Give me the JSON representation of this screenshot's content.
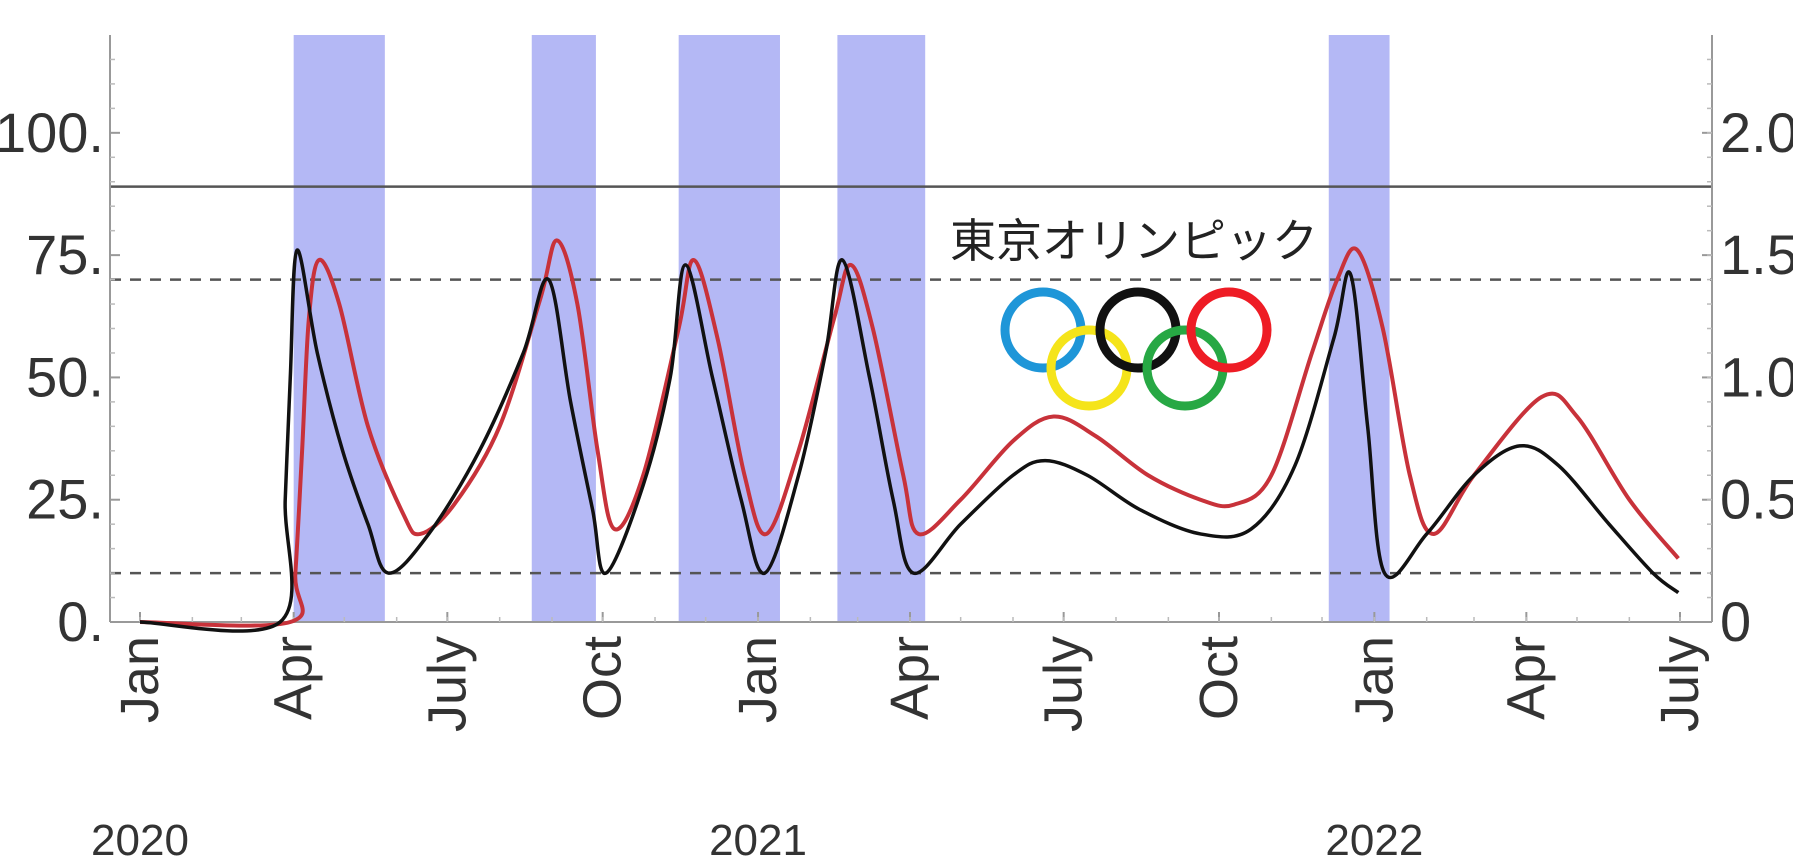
{
  "chart_data": {
    "type": "line",
    "title": "",
    "xlabel": "",
    "ylabel": "",
    "x_range": [
      "2020-01-01",
      "2022-07-01"
    ],
    "y_left": {
      "ylim": [
        0,
        120
      ],
      "ticks": [
        "0.",
        "25.",
        "50.",
        "75.",
        "100."
      ],
      "tick_values": [
        0,
        25,
        50,
        75,
        100
      ]
    },
    "y_right": {
      "ylim": [
        0,
        2.4
      ],
      "ticks": [
        "0",
        "0.5",
        "1.0",
        "1.5",
        "2.0"
      ],
      "tick_values": [
        0,
        0.5,
        1.0,
        1.5,
        2.0
      ]
    },
    "x_ticks": [
      {
        "label": "Jan",
        "date": "2020-01-01"
      },
      {
        "label": "Apr",
        "date": "2020-04-01"
      },
      {
        "label": "July",
        "date": "2020-07-01"
      },
      {
        "label": "Oct",
        "date": "2020-10-01"
      },
      {
        "label": "Jan",
        "date": "2021-01-01"
      },
      {
        "label": "Apr",
        "date": "2021-04-01"
      },
      {
        "label": "July",
        "date": "2021-07-01"
      },
      {
        "label": "Oct",
        "date": "2021-10-01"
      },
      {
        "label": "Jan",
        "date": "2022-01-01"
      },
      {
        "label": "Apr",
        "date": "2022-04-01"
      },
      {
        "label": "July",
        "date": "2022-07-01"
      }
    ],
    "years": [
      {
        "label": "2020",
        "date": "2020-01-01"
      },
      {
        "label": "2021",
        "date": "2021-01-01"
      },
      {
        "label": "2022",
        "date": "2022-01-01"
      }
    ],
    "reference_lines": [
      {
        "y": 89,
        "style": "solid",
        "color": "#555555"
      },
      {
        "y": 70,
        "style": "dashed",
        "color": "#555555"
      },
      {
        "y": 10,
        "style": "dashed",
        "color": "#555555"
      }
    ],
    "shaded_periods": [
      {
        "start": "2020-04-01",
        "end": "2020-05-25"
      },
      {
        "start": "2020-08-20",
        "end": "2020-09-27"
      },
      {
        "start": "2020-11-15",
        "end": "2021-01-14"
      },
      {
        "start": "2021-02-17",
        "end": "2021-04-10"
      },
      {
        "start": "2021-12-05",
        "end": "2022-01-10"
      }
    ],
    "shade_color": "#b4b8f5",
    "series": [
      {
        "color": "#111111",
        "points": [
          [
            "2020-01-01",
            0
          ],
          [
            "2020-03-24",
            0
          ],
          [
            "2020-03-27",
            25
          ],
          [
            "2020-03-30",
            50
          ],
          [
            "2020-04-03",
            76
          ],
          [
            "2020-04-15",
            55
          ],
          [
            "2020-04-30",
            35
          ],
          [
            "2020-05-15",
            20
          ],
          [
            "2020-05-27",
            10
          ],
          [
            "2020-06-20",
            18
          ],
          [
            "2020-07-20",
            35
          ],
          [
            "2020-08-15",
            55
          ],
          [
            "2020-08-30",
            70
          ],
          [
            "2020-09-12",
            45
          ],
          [
            "2020-09-25",
            23
          ],
          [
            "2020-10-03",
            10
          ],
          [
            "2020-10-25",
            28
          ],
          [
            "2020-11-10",
            50
          ],
          [
            "2020-11-19",
            73
          ],
          [
            "2020-12-05",
            50
          ],
          [
            "2020-12-22",
            25
          ],
          [
            "2021-01-05",
            10
          ],
          [
            "2021-01-25",
            30
          ],
          [
            "2021-02-10",
            55
          ],
          [
            "2021-02-20",
            74
          ],
          [
            "2021-03-08",
            50
          ],
          [
            "2021-03-22",
            25
          ],
          [
            "2021-04-03",
            10
          ],
          [
            "2021-05-01",
            20
          ],
          [
            "2021-06-01",
            30
          ],
          [
            "2021-06-20",
            33
          ],
          [
            "2021-07-15",
            30
          ],
          [
            "2021-08-15",
            23
          ],
          [
            "2021-09-20",
            18
          ],
          [
            "2021-10-20",
            19
          ],
          [
            "2021-11-15",
            32
          ],
          [
            "2021-12-08",
            58
          ],
          [
            "2021-12-18",
            71
          ],
          [
            "2021-12-28",
            40
          ],
          [
            "2022-01-07",
            10
          ],
          [
            "2022-02-01",
            18
          ],
          [
            "2022-03-01",
            30
          ],
          [
            "2022-03-28",
            36
          ],
          [
            "2022-04-20",
            32
          ],
          [
            "2022-05-20",
            20
          ],
          [
            "2022-06-15",
            10
          ],
          [
            "2022-06-30",
            6
          ]
        ]
      },
      {
        "color": "#c8323a",
        "points": [
          [
            "2020-01-01",
            0
          ],
          [
            "2020-03-30",
            0
          ],
          [
            "2020-04-02",
            10
          ],
          [
            "2020-04-06",
            35
          ],
          [
            "2020-04-10",
            62
          ],
          [
            "2020-04-16",
            74
          ],
          [
            "2020-04-28",
            65
          ],
          [
            "2020-05-15",
            40
          ],
          [
            "2020-06-05",
            22
          ],
          [
            "2020-06-15",
            18
          ],
          [
            "2020-07-05",
            24
          ],
          [
            "2020-08-01",
            40
          ],
          [
            "2020-08-25",
            66
          ],
          [
            "2020-09-04",
            78
          ],
          [
            "2020-09-16",
            65
          ],
          [
            "2020-09-28",
            35
          ],
          [
            "2020-10-08",
            19
          ],
          [
            "2020-10-25",
            30
          ],
          [
            "2020-11-15",
            60
          ],
          [
            "2020-11-24",
            74
          ],
          [
            "2020-12-08",
            58
          ],
          [
            "2020-12-24",
            30
          ],
          [
            "2021-01-06",
            18
          ],
          [
            "2021-01-25",
            35
          ],
          [
            "2021-02-15",
            62
          ],
          [
            "2021-02-25",
            73
          ],
          [
            "2021-03-10",
            60
          ],
          [
            "2021-03-28",
            30
          ],
          [
            "2021-04-06",
            18
          ],
          [
            "2021-05-01",
            25
          ],
          [
            "2021-06-01",
            37
          ],
          [
            "2021-06-25",
            42
          ],
          [
            "2021-07-20",
            38
          ],
          [
            "2021-08-20",
            30
          ],
          [
            "2021-09-20",
            25
          ],
          [
            "2021-10-10",
            24
          ],
          [
            "2021-11-01",
            30
          ],
          [
            "2021-11-25",
            55
          ],
          [
            "2021-12-10",
            70
          ],
          [
            "2021-12-22",
            76
          ],
          [
            "2022-01-06",
            60
          ],
          [
            "2022-01-22",
            30
          ],
          [
            "2022-02-05",
            18
          ],
          [
            "2022-03-01",
            30
          ],
          [
            "2022-04-10",
            46
          ],
          [
            "2022-05-01",
            42
          ],
          [
            "2022-06-01",
            25
          ],
          [
            "2022-06-30",
            13
          ]
        ]
      }
    ]
  },
  "annotation": {
    "text": "東京オリンピック",
    "olympic_ring_colors": [
      "#1e96d8",
      "#f5e41a",
      "#111111",
      "#27a844",
      "#ee1c25"
    ]
  }
}
